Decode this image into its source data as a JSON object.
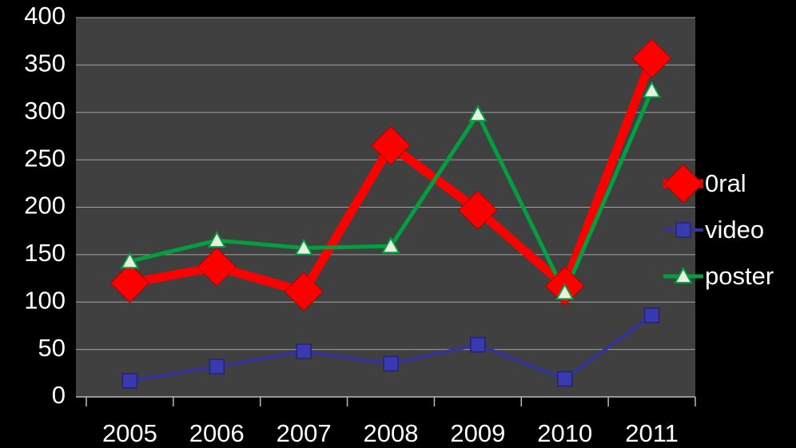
{
  "chart_data": {
    "type": "line",
    "categories": [
      "2005",
      "2006",
      "2007",
      "2008",
      "2009",
      "2010",
      "2011"
    ],
    "series": [
      {
        "name": "0ral",
        "color": "#ff0000",
        "marker": "diamond",
        "values": [
          120,
          137,
          111,
          265,
          197,
          117,
          357
        ]
      },
      {
        "name": "video",
        "color": "#333399",
        "marker": "square",
        "values": [
          17,
          32,
          48,
          35,
          55,
          19,
          86
        ]
      },
      {
        "name": "poster",
        "color": "#00a040",
        "marker": "triangle",
        "values": [
          143,
          165,
          157,
          159,
          298,
          110,
          323
        ]
      }
    ],
    "ylim": [
      0,
      400
    ],
    "yticks": [
      0,
      50,
      100,
      150,
      200,
      250,
      300,
      350,
      400
    ],
    "grid": true,
    "legend": "right"
  }
}
